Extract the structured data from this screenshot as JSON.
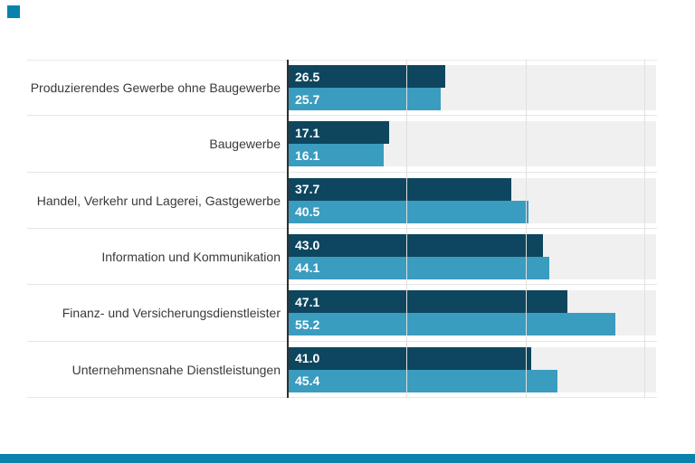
{
  "chart_data": {
    "type": "bar",
    "orientation": "horizontal",
    "title": "",
    "xlabel": "",
    "ylabel": "",
    "categories": [
      "Produzierendes Gewerbe ohne Baugewerbe",
      "Baugewerbe",
      "Handel, Verkehr und Lagerei, Gastgewerbe",
      "Information und Kommunikation",
      "Finanz- und Versicherungsdienstleister",
      "Unternehmensnahe Dienstleistungen"
    ],
    "series": [
      {
        "name": "series-dark",
        "color": "#0d465e",
        "values": [
          26.5,
          17.1,
          37.7,
          43.0,
          47.1,
          41.0
        ]
      },
      {
        "name": "series-light",
        "color": "#3a9cbf",
        "values": [
          25.7,
          16.1,
          40.5,
          44.1,
          55.2,
          45.4
        ]
      }
    ],
    "value_labels_shown": true,
    "value_label_format": "one-decimal",
    "xlim": [
      0,
      62
    ],
    "gridline_ticks": [
      20,
      40,
      60
    ],
    "grid": "vertical",
    "legend_position": "none"
  },
  "colors": {
    "bar_dark": "#0d465e",
    "bar_light": "#3a9cbf",
    "accent_footer": "#0783ad",
    "row_band": "#f0f0f0",
    "gridline": "#e0e0e0",
    "separator": "#e6e6e6",
    "axis_line": "#2f2f2f",
    "category_text": "#3a3a3a",
    "value_text": "#ffffff"
  },
  "footer": {
    "bar_present": true
  },
  "brand": {
    "square_present": true
  }
}
